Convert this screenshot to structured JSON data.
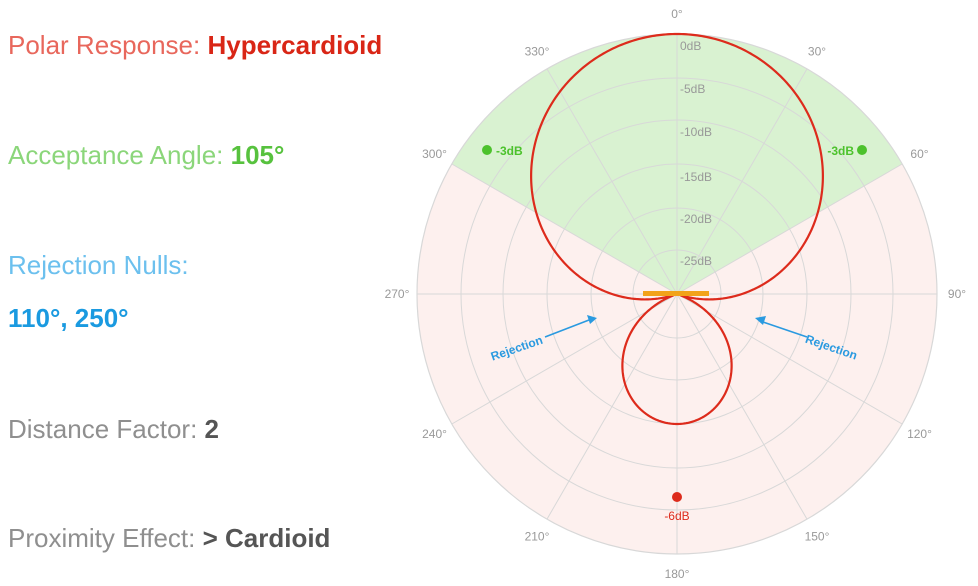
{
  "specs": {
    "polar_response": {
      "label": "Polar Response: ",
      "value": "Hypercardioid",
      "color": "#e8675c",
      "value_color": "#d92616"
    },
    "acceptance_angle": {
      "label": "Acceptance Angle: ",
      "value": "105°",
      "color": "#8bd67a",
      "value_color": "#57c23e"
    },
    "rejection_nulls": {
      "label": "Rejection Nulls:",
      "value": "110°, 250°",
      "color": "#6cc0ee",
      "value_color": "#1a9ae0"
    },
    "distance_factor": {
      "label": "Distance Factor: ",
      "value": "2",
      "color": "#8f8f8f",
      "value_color": "#555555"
    },
    "proximity_effect": {
      "label": "Proximity Effect: ",
      "value": "> Cardioid",
      "color": "#8f8f8f",
      "value_color": "#555555"
    }
  },
  "diagram": {
    "angle_labels": [
      "0°",
      "30°",
      "60°",
      "90°",
      "120°",
      "150°",
      "180°",
      "210°",
      "240°",
      "270°",
      "300°",
      "330°"
    ],
    "ring_labels": [
      "0dB",
      "-5dB",
      "-10dB",
      "-15dB",
      "-20dB",
      "-25dB"
    ],
    "marker_left_label": "-3dB",
    "marker_right_label": "-3dB",
    "rear_marker_label": "-6dB",
    "rejection_left_label": "Rejection",
    "rejection_right_label": "Rejection",
    "acceptance_angle_deg": 105,
    "null_angles_deg": [
      110,
      250
    ],
    "pattern": "hypercardioid",
    "colors": {
      "pattern": "#dd2b1c",
      "acceptance_fill": "#d9f2d1",
      "rejection_fill": "#fdf0ee",
      "grid": "#d8d8d8",
      "green_marker": "#4cc22c",
      "red_marker": "#dd2b1c",
      "arrow": "#2a9ae0",
      "axis_bar": "#f2a31a",
      "label": "#999999"
    }
  }
}
